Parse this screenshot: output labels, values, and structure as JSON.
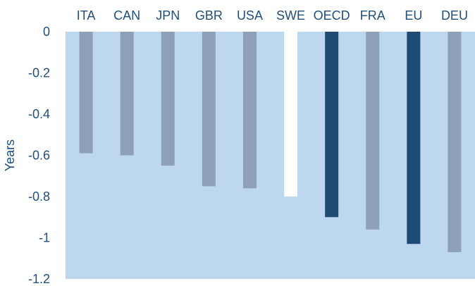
{
  "chart_data": {
    "type": "bar",
    "title": "",
    "xlabel": "",
    "ylabel": "Years",
    "ylim": [
      -1.2,
      0
    ],
    "yticks": [
      0,
      -0.2,
      -0.4,
      -0.6,
      -0.8,
      -1,
      -1.2
    ],
    "yticklabels": [
      "0",
      "-0.2",
      "-0.4",
      "-0.6",
      "-0.8",
      "-1",
      "-1.2"
    ],
    "categories": [
      "ITA",
      "CAN",
      "JPN",
      "GBR",
      "USA",
      "SWE",
      "OECD",
      "FRA",
      "EU",
      "DEU"
    ],
    "values": [
      -0.59,
      -0.6,
      -0.65,
      -0.75,
      -0.76,
      -0.8,
      -0.9,
      -0.96,
      -1.03,
      -1.07
    ],
    "category_axis_position": "top",
    "grid": false,
    "colors": {
      "plot_background": "#bdd7ee",
      "default_bar": "#8ea0b8",
      "highlight_aggregate": "#1f4a73",
      "highlight_country": "#ffffff",
      "text": "#1f4f7a"
    },
    "bar_color_keys": [
      "default_bar",
      "default_bar",
      "default_bar",
      "default_bar",
      "default_bar",
      "highlight_country",
      "highlight_aggregate",
      "default_bar",
      "highlight_aggregate",
      "default_bar"
    ]
  }
}
